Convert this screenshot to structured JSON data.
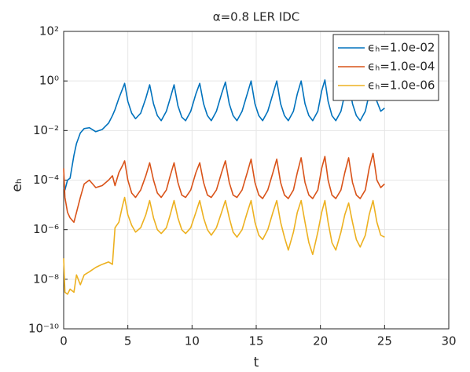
{
  "chart_data": {
    "type": "line",
    "title": "α=0.8   LER IDC",
    "xlabel": "t",
    "ylabel": "eₕ",
    "log_y": true,
    "grid": true,
    "legend": "northeast",
    "xlim": [
      0,
      30
    ],
    "xticks": [
      0,
      5,
      10,
      15,
      20,
      25,
      30
    ],
    "ylim": [
      1e-10,
      100
    ],
    "yticks": [
      {
        "value": 1e-10,
        "label": "10⁻¹⁰"
      },
      {
        "value": 1e-08,
        "label": "10⁻⁸"
      },
      {
        "value": 1e-06,
        "label": "10⁻⁶"
      },
      {
        "value": 0.0001,
        "label": "10⁻⁴"
      },
      {
        "value": 0.01,
        "label": "10⁻²"
      },
      {
        "value": 1,
        "label": "10⁰"
      },
      {
        "value": 100,
        "label": "10²"
      }
    ],
    "x": [
      0,
      0.1,
      0.3,
      0.5,
      0.8,
      1.0,
      1.3,
      1.6,
      2.0,
      2.5,
      3.0,
      3.5,
      3.8,
      4.0,
      4.3,
      4.6,
      4.75,
      5.0,
      5.3,
      5.6,
      6.0,
      6.4,
      6.7,
      7.0,
      7.3,
      7.6,
      8.0,
      8.3,
      8.6,
      8.9,
      9.2,
      9.5,
      9.9,
      10.3,
      10.6,
      10.9,
      11.2,
      11.5,
      11.9,
      12.3,
      12.6,
      12.9,
      13.2,
      13.5,
      13.9,
      14.3,
      14.6,
      14.9,
      15.2,
      15.5,
      15.9,
      16.3,
      16.6,
      16.9,
      17.2,
      17.5,
      17.9,
      18.2,
      18.5,
      18.8,
      19.1,
      19.4,
      19.8,
      20.1,
      20.35,
      20.6,
      20.9,
      21.2,
      21.6,
      21.9,
      22.2,
      22.5,
      22.8,
      23.1,
      23.5,
      23.8,
      24.1,
      24.4,
      24.7,
      25.0
    ],
    "series": [
      {
        "name": "ϵₕ=1.0e-02",
        "color": "#0072BD",
        "values": [
          5e-05,
          4e-05,
          0.0001,
          0.00012,
          0.001,
          0.003,
          0.008,
          0.012,
          0.013,
          0.009,
          0.011,
          0.02,
          0.04,
          0.07,
          0.2,
          0.5,
          0.8,
          0.15,
          0.05,
          0.03,
          0.05,
          0.2,
          0.7,
          0.12,
          0.04,
          0.025,
          0.06,
          0.2,
          0.7,
          0.1,
          0.035,
          0.025,
          0.06,
          0.3,
          0.8,
          0.12,
          0.04,
          0.025,
          0.06,
          0.3,
          0.9,
          0.12,
          0.04,
          0.025,
          0.06,
          0.3,
          1.0,
          0.12,
          0.04,
          0.025,
          0.06,
          0.3,
          1.0,
          0.12,
          0.04,
          0.025,
          0.06,
          0.3,
          1.0,
          0.12,
          0.04,
          0.025,
          0.06,
          0.4,
          1.1,
          0.15,
          0.04,
          0.025,
          0.06,
          0.3,
          1.0,
          0.12,
          0.04,
          0.025,
          0.06,
          0.3,
          1.0,
          0.15,
          0.06,
          0.08
        ]
      },
      {
        "name": "ϵₕ=1.0e-04",
        "color": "#D95319",
        "values": [
          0.0003,
          2e-05,
          5e-06,
          3e-06,
          2e-06,
          5e-06,
          2e-05,
          7e-05,
          0.0001,
          5e-05,
          6e-05,
          0.0001,
          0.00015,
          6e-05,
          0.0002,
          0.0004,
          0.0006,
          0.0001,
          3e-05,
          2e-05,
          4e-05,
          0.00015,
          0.0005,
          0.0001,
          3e-05,
          2e-05,
          4e-05,
          0.00015,
          0.0005,
          8e-05,
          2.5e-05,
          2e-05,
          4e-05,
          0.0002,
          0.0005,
          8e-05,
          2.5e-05,
          2e-05,
          4e-05,
          0.0002,
          0.0006,
          8e-05,
          2.5e-05,
          2e-05,
          4e-05,
          0.0002,
          0.0007,
          8e-05,
          2.5e-05,
          1.8e-05,
          4e-05,
          0.0002,
          0.0007,
          8e-05,
          2.5e-05,
          1.8e-05,
          4e-05,
          0.0002,
          0.0008,
          8e-05,
          2.5e-05,
          1.8e-05,
          4e-05,
          0.0003,
          0.0009,
          0.0001,
          2.5e-05,
          1.8e-05,
          4e-05,
          0.0002,
          0.0008,
          8e-05,
          2.5e-05,
          1.8e-05,
          4e-05,
          0.0003,
          0.0012,
          0.0001,
          5e-05,
          7e-05
        ]
      },
      {
        "name": "ϵₕ=1.0e-06",
        "color": "#EDB120",
        "values": [
          7e-08,
          3e-09,
          2.5e-09,
          4e-09,
          3e-09,
          1.5e-08,
          6e-09,
          1.5e-08,
          2e-08,
          3e-08,
          4e-08,
          5e-08,
          4e-08,
          1.2e-06,
          2e-06,
          1e-05,
          2e-05,
          4e-06,
          1.5e-06,
          8e-07,
          1.2e-06,
          4e-06,
          1.5e-05,
          3e-06,
          1e-06,
          7e-07,
          1.2e-06,
          4e-06,
          1.5e-05,
          3e-06,
          1e-06,
          7e-07,
          1.2e-06,
          5e-06,
          1.5e-05,
          3e-06,
          1e-06,
          6e-07,
          1.2e-06,
          5e-06,
          1.5e-05,
          3e-06,
          8e-07,
          5e-07,
          1e-06,
          5e-06,
          1.5e-05,
          2e-06,
          6e-07,
          4e-07,
          1e-06,
          5e-06,
          1.5e-05,
          2e-06,
          5e-07,
          1.5e-07,
          8e-07,
          5e-06,
          1.5e-05,
          2e-06,
          3e-07,
          1e-07,
          8e-07,
          5e-06,
          1.5e-05,
          2e-06,
          3e-07,
          1.5e-07,
          8e-07,
          4e-06,
          1.2e-05,
          2e-06,
          4e-07,
          2e-07,
          6e-07,
          4e-06,
          1.5e-05,
          2e-06,
          6e-07,
          5e-07
        ]
      }
    ]
  }
}
